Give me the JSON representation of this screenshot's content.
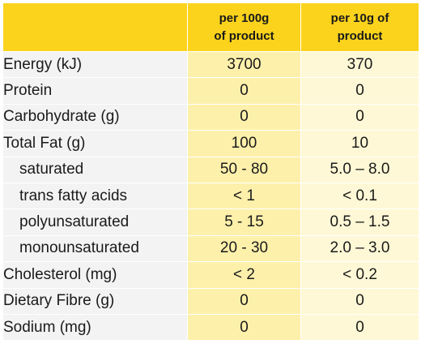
{
  "header": {
    "per_100g_line1": "per 100g",
    "per_100g_line2": "of product",
    "per_10g_line1": "per 10g of",
    "per_10g_line2": "product"
  },
  "rows": [
    {
      "nutrient": "Energy (kJ)",
      "per_100g": "3700",
      "per_10g": "370"
    },
    {
      "nutrient": "Protein",
      "per_100g": "0",
      "per_10g": "0"
    },
    {
      "nutrient": "Carbohydrate (g)",
      "per_100g": "0",
      "per_10g": "0"
    },
    {
      "nutrient": "Total Fat (g)",
      "per_100g": "100",
      "per_10g": "10"
    },
    {
      "nutrient": "saturated",
      "per_100g": "50 - 80",
      "per_10g": "5.0 – 8.0"
    },
    {
      "nutrient": "trans fatty acids",
      "per_100g": "< 1",
      "per_10g": "< 0.1"
    },
    {
      "nutrient": "polyunsaturated",
      "per_100g": "5 - 15",
      "per_10g": "0.5 – 1.5"
    },
    {
      "nutrient": "monounsaturated",
      "per_100g": "20 - 30",
      "per_10g": "2.0 – 3.0"
    },
    {
      "nutrient": "Cholesterol (mg)",
      "per_100g": "< 2",
      "per_10g": "< 0.2"
    },
    {
      "nutrient": "Dietary Fibre (g)",
      "per_100g": "0",
      "per_10g": "0"
    },
    {
      "nutrient": "Sodium (mg)",
      "per_100g": "0",
      "per_10g": "0"
    }
  ],
  "colors": {
    "header_background": "#fbd31c",
    "label_column_background": "#f3f3f3",
    "per_100g_column_background": "#fdf0ab",
    "per_10g_column_background": "#fef8d6"
  }
}
